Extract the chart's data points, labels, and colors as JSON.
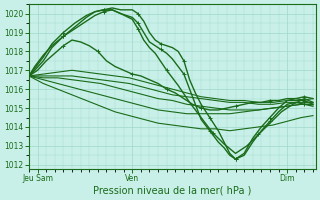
{
  "bg_color": "#c8f0e8",
  "grid_color": "#a0d8cc",
  "line_color": "#1a6b1a",
  "ylabel_ticks": [
    1012,
    1013,
    1014,
    1015,
    1016,
    1017,
    1018,
    1019,
    1020
  ],
  "ylim": [
    1011.8,
    1020.5
  ],
  "xlim": [
    0,
    100
  ],
  "xtick_positions": [
    3,
    36,
    90
  ],
  "xtick_labels": [
    "Jeu Sam",
    "Ven",
    "Dim"
  ],
  "xlabel": "Pression niveau de la mer( hPa )",
  "series": [
    {
      "x": [
        0,
        2,
        5,
        8,
        12,
        16,
        20,
        23,
        26,
        29,
        32,
        36,
        38,
        40,
        42,
        44,
        46,
        48,
        50,
        52,
        54,
        56,
        58,
        60,
        63,
        66,
        68,
        70,
        72,
        75,
        78,
        81,
        84,
        87,
        90,
        93,
        96,
        99
      ],
      "y": [
        1016.7,
        1017.0,
        1017.5,
        1018.2,
        1018.8,
        1019.3,
        1019.8,
        1020.1,
        1020.2,
        1020.3,
        1020.2,
        1020.2,
        1020.0,
        1019.6,
        1019.0,
        1018.6,
        1018.4,
        1018.3,
        1018.2,
        1018.0,
        1017.5,
        1016.5,
        1015.8,
        1015.2,
        1014.5,
        1013.8,
        1013.2,
        1012.6,
        1012.3,
        1012.5,
        1013.2,
        1013.8,
        1014.3,
        1014.8,
        1015.2,
        1015.3,
        1015.2,
        1015.1
      ],
      "marker": true,
      "lw": 1.0
    },
    {
      "x": [
        0,
        2,
        5,
        8,
        12,
        16,
        20,
        23,
        26,
        29,
        32,
        36,
        38,
        40,
        42,
        44,
        46,
        48,
        50,
        52,
        54,
        56,
        58,
        60,
        63,
        66,
        68,
        70,
        72,
        75,
        78,
        81,
        84,
        87,
        90,
        93,
        96,
        99
      ],
      "y": [
        1016.7,
        1017.1,
        1017.7,
        1018.4,
        1019.0,
        1019.5,
        1019.9,
        1020.1,
        1020.2,
        1020.2,
        1020.0,
        1019.8,
        1019.5,
        1019.0,
        1018.5,
        1018.3,
        1018.1,
        1017.9,
        1017.6,
        1017.2,
        1016.8,
        1016.0,
        1015.2,
        1014.4,
        1013.8,
        1013.2,
        1012.9,
        1012.5,
        1012.3,
        1012.6,
        1013.4,
        1014.0,
        1014.5,
        1015.0,
        1015.4,
        1015.5,
        1015.4,
        1015.2
      ],
      "marker": true,
      "lw": 1.0
    },
    {
      "x": [
        0,
        2,
        5,
        8,
        12,
        16,
        20,
        23,
        26,
        29,
        32,
        36,
        38,
        40,
        42,
        44,
        48,
        52,
        56,
        60,
        64,
        68,
        72,
        76,
        80,
        84,
        88,
        92,
        96,
        99
      ],
      "y": [
        1016.7,
        1017.2,
        1017.8,
        1018.3,
        1018.8,
        1019.2,
        1019.6,
        1019.9,
        1020.1,
        1020.2,
        1020.0,
        1019.7,
        1019.2,
        1018.6,
        1018.2,
        1017.9,
        1017.0,
        1016.2,
        1015.3,
        1014.5,
        1013.7,
        1013.1,
        1012.6,
        1013.0,
        1013.6,
        1014.2,
        1014.8,
        1015.2,
        1015.5,
        1015.3
      ],
      "marker": true,
      "lw": 1.0
    },
    {
      "x": [
        0,
        3,
        6,
        9,
        12,
        15,
        18,
        21,
        24,
        27,
        30,
        33,
        36,
        39,
        42,
        45,
        48,
        51,
        54,
        57,
        60,
        63,
        66,
        69,
        72,
        75,
        78,
        81,
        84,
        87,
        90,
        93,
        96,
        99
      ],
      "y": [
        1016.7,
        1017.0,
        1017.5,
        1017.9,
        1018.3,
        1018.6,
        1018.5,
        1018.3,
        1018.0,
        1017.5,
        1017.2,
        1017.0,
        1016.8,
        1016.7,
        1016.5,
        1016.3,
        1016.0,
        1015.8,
        1015.5,
        1015.2,
        1015.0,
        1014.9,
        1014.9,
        1015.0,
        1015.1,
        1015.2,
        1015.3,
        1015.3,
        1015.4,
        1015.4,
        1015.5,
        1015.5,
        1015.6,
        1015.5
      ],
      "marker": true,
      "lw": 1.0
    },
    {
      "x": [
        0,
        5,
        10,
        15,
        20,
        25,
        30,
        35,
        40,
        45,
        50,
        55,
        60,
        65,
        70,
        75,
        80,
        85,
        90,
        95,
        99
      ],
      "y": [
        1016.7,
        1016.8,
        1016.9,
        1017.0,
        1016.9,
        1016.8,
        1016.7,
        1016.6,
        1016.4,
        1016.2,
        1016.0,
        1015.8,
        1015.6,
        1015.5,
        1015.4,
        1015.4,
        1015.3,
        1015.3,
        1015.4,
        1015.4,
        1015.5
      ],
      "marker": false,
      "lw": 0.8
    },
    {
      "x": [
        0,
        5,
        10,
        15,
        20,
        25,
        30,
        35,
        40,
        45,
        50,
        55,
        60,
        65,
        70,
        75,
        80,
        85,
        90,
        95,
        99
      ],
      "y": [
        1016.7,
        1016.7,
        1016.7,
        1016.7,
        1016.6,
        1016.5,
        1016.4,
        1016.3,
        1016.1,
        1015.9,
        1015.7,
        1015.6,
        1015.5,
        1015.4,
        1015.3,
        1015.3,
        1015.2,
        1015.2,
        1015.3,
        1015.3,
        1015.3
      ],
      "marker": false,
      "lw": 0.8
    },
    {
      "x": [
        0,
        5,
        10,
        15,
        20,
        25,
        30,
        35,
        40,
        45,
        50,
        55,
        60,
        65,
        70,
        75,
        80,
        85,
        90,
        95,
        99
      ],
      "y": [
        1016.7,
        1016.6,
        1016.6,
        1016.5,
        1016.4,
        1016.3,
        1016.1,
        1015.9,
        1015.7,
        1015.5,
        1015.4,
        1015.2,
        1015.1,
        1015.0,
        1014.9,
        1014.9,
        1014.9,
        1015.0,
        1015.1,
        1015.2,
        1015.2
      ],
      "marker": false,
      "lw": 0.8
    },
    {
      "x": [
        0,
        5,
        10,
        15,
        20,
        25,
        30,
        35,
        40,
        45,
        50,
        55,
        60,
        65,
        70,
        75,
        80,
        85,
        90,
        95,
        99
      ],
      "y": [
        1016.7,
        1016.5,
        1016.3,
        1016.1,
        1015.9,
        1015.7,
        1015.5,
        1015.3,
        1015.1,
        1014.9,
        1014.8,
        1014.7,
        1014.7,
        1014.7,
        1014.7,
        1014.8,
        1014.9,
        1015.0,
        1015.1,
        1015.2,
        1015.2
      ],
      "marker": false,
      "lw": 0.8
    },
    {
      "x": [
        0,
        5,
        10,
        15,
        20,
        25,
        30,
        35,
        40,
        45,
        50,
        55,
        60,
        65,
        70,
        75,
        80,
        85,
        90,
        95,
        99
      ],
      "y": [
        1016.7,
        1016.3,
        1016.0,
        1015.7,
        1015.4,
        1015.1,
        1014.8,
        1014.6,
        1014.4,
        1014.2,
        1014.1,
        1014.0,
        1013.9,
        1013.9,
        1013.8,
        1013.9,
        1014.0,
        1014.1,
        1014.3,
        1014.5,
        1014.6
      ],
      "marker": false,
      "lw": 0.8
    }
  ]
}
